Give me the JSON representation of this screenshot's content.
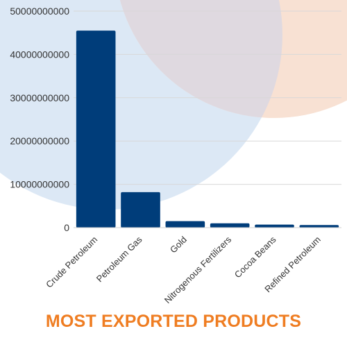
{
  "chart_data": {
    "type": "bar",
    "title": "MOST EXPORTED PRODUCTS",
    "categories": [
      "Crude Petroleum",
      "Petroleum Gas",
      "Gold",
      "Nitrogenous Fertilizers",
      "Cocoa Beans",
      "Refined Petroleum"
    ],
    "values": [
      45500000000,
      8200000000,
      1500000000,
      1000000000,
      700000000,
      600000000
    ],
    "yticks": [
      "0",
      "10000000000",
      "20000000000",
      "30000000000",
      "40000000000",
      "50000000000"
    ],
    "ylim": [
      0,
      50000000000
    ],
    "xlabel": "",
    "ylabel": "",
    "grid": true,
    "legend": "none"
  },
  "colors": {
    "bar": "#003d7a",
    "title": "#ef7d22",
    "blue_circle": "#dce8f5",
    "peach_circle": "#f8e1d3",
    "overlap": "#dfd9e0",
    "grid": "#d8d8d8",
    "text": "#333333"
  }
}
